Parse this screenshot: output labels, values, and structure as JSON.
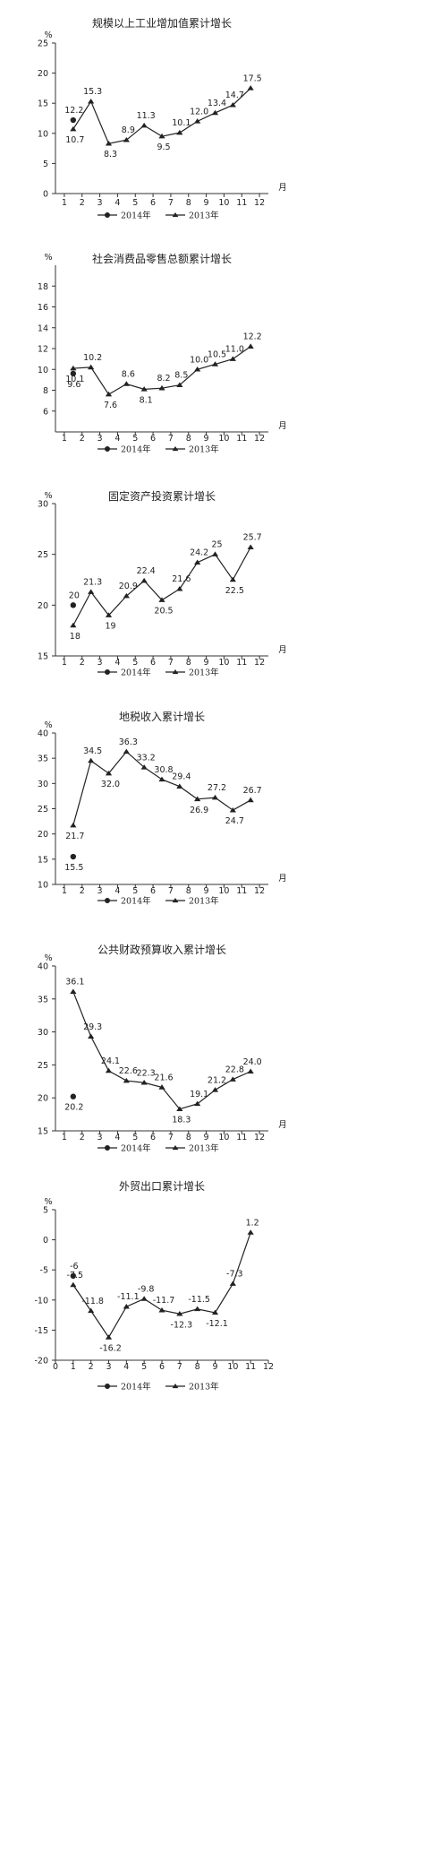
{
  "colors": {
    "line": "#222222",
    "axis": "#333333"
  },
  "chart_data": [
    {
      "type": "line",
      "title": "规模以上工业增加值累计增长",
      "ylabel": "%",
      "xlabel": "月",
      "ylim": [
        0,
        25
      ],
      "yticks": [
        0,
        5,
        10,
        15,
        20,
        25
      ],
      "xticks": [
        "1",
        "2",
        "3",
        "4",
        "5",
        "6",
        "7",
        "8",
        "9",
        "10",
        "11",
        "12"
      ],
      "legend": [
        "2014年",
        "2013年"
      ],
      "series": [
        {
          "name": "2014年",
          "marker": "circle",
          "x": [
            1.5
          ],
          "values": [
            12.2
          ],
          "labels": [
            "12.2"
          ]
        },
        {
          "name": "2013年",
          "marker": "triangle",
          "x": [
            1.5,
            2.5,
            3.5,
            4.5,
            5.5,
            6.5,
            7.5,
            8.5,
            9.5,
            10.5,
            11.5
          ],
          "values": [
            10.7,
            15.3,
            8.3,
            8.9,
            11.3,
            9.5,
            10.1,
            12.0,
            13.4,
            14.7,
            17.5
          ],
          "labels": [
            "10.7",
            "15.3",
            "8.3",
            "8.9",
            "11.3",
            "9.5",
            "10.1",
            "12.0",
            "13.4",
            "14.7",
            "17.5"
          ]
        }
      ]
    },
    {
      "type": "line",
      "title": "社会消费品零售总额累计增长",
      "ylabel": "%",
      "xlabel": "月",
      "ylim": [
        4,
        20
      ],
      "yticks": [
        6,
        8,
        10,
        12,
        14,
        16,
        18
      ],
      "xticks": [
        "1",
        "2",
        "3",
        "4",
        "5",
        "6",
        "7",
        "8",
        "9",
        "10",
        "11",
        "12"
      ],
      "legend": [
        "2014年",
        "2013年"
      ],
      "series": [
        {
          "name": "2014年",
          "marker": "circle",
          "x": [
            1.5
          ],
          "values": [
            9.6
          ],
          "labels": [
            "9.6"
          ]
        },
        {
          "name": "2013年",
          "marker": "triangle",
          "x": [
            1.5,
            2.5,
            3.5,
            4.5,
            5.5,
            6.5,
            7.5,
            8.5,
            9.5,
            10.5,
            11.5
          ],
          "values": [
            10.1,
            10.2,
            7.6,
            8.6,
            8.1,
            8.2,
            8.5,
            10.0,
            10.5,
            11.0,
            12.2
          ],
          "labels": [
            "10.1",
            "10.2",
            "7.6",
            "8.6",
            "8.1",
            "8.2",
            "8.5",
            "10.0",
            "10.5",
            "11.0",
            "12.2"
          ]
        }
      ]
    },
    {
      "type": "line",
      "title": "固定资产投资累计增长",
      "ylabel": "%",
      "xlabel": "月",
      "ylim": [
        15,
        30
      ],
      "yticks": [
        15,
        20,
        25,
        30
      ],
      "xticks": [
        "1",
        "2",
        "3",
        "4",
        "5",
        "6",
        "7",
        "8",
        "9",
        "10",
        "11",
        "12"
      ],
      "legend": [
        "2014年",
        "2013年"
      ],
      "series": [
        {
          "name": "2014年",
          "marker": "circle",
          "x": [
            1.5
          ],
          "values": [
            20
          ],
          "labels": [
            "20"
          ]
        },
        {
          "name": "2013年",
          "marker": "triangle",
          "x": [
            1.5,
            2.5,
            3.5,
            4.5,
            5.5,
            6.5,
            7.5,
            8.5,
            9.5,
            10.5,
            11.5
          ],
          "values": [
            18,
            21.3,
            19,
            20.9,
            22.4,
            20.5,
            21.6,
            24.2,
            25,
            22.5,
            25.7
          ],
          "labels": [
            "18",
            "21.3",
            "19",
            "20.9",
            "22.4",
            "20.5",
            "21.6",
            "24.2",
            "25",
            "22.5",
            "25.7"
          ]
        }
      ]
    },
    {
      "type": "line",
      "title": "地税收入累计增长",
      "ylabel": "%",
      "xlabel": "月",
      "ylim": [
        10,
        40
      ],
      "yticks": [
        10,
        15,
        20,
        25,
        30,
        35,
        40
      ],
      "xticks": [
        "1",
        "2",
        "3",
        "4",
        "5",
        "6",
        "7",
        "8",
        "9",
        "10",
        "11",
        "12"
      ],
      "legend": [
        "2014年",
        "2013年"
      ],
      "series": [
        {
          "name": "2014年",
          "marker": "circle",
          "x": [
            1.5
          ],
          "values": [
            15.5
          ],
          "labels": [
            "15.5"
          ]
        },
        {
          "name": "2013年",
          "marker": "triangle",
          "x": [
            1.5,
            2.5,
            3.5,
            4.5,
            5.5,
            6.5,
            7.5,
            8.5,
            9.5,
            10.5,
            11.5
          ],
          "values": [
            21.7,
            34.5,
            32.0,
            36.3,
            33.2,
            30.8,
            29.4,
            26.9,
            27.2,
            24.7,
            26.7
          ],
          "labels": [
            "21.7",
            "34.5",
            "32.0",
            "36.3",
            "33.2",
            "30.8",
            "29.4",
            "26.9",
            "27.2",
            "24.7",
            "26.7"
          ]
        }
      ]
    },
    {
      "type": "line",
      "title": "公共财政预算收入累计增长",
      "ylabel": "%",
      "xlabel": "月",
      "ylim": [
        15,
        40
      ],
      "yticks": [
        15,
        20,
        25,
        30,
        35,
        40
      ],
      "xticks": [
        "1",
        "2",
        "3",
        "4",
        "5",
        "6",
        "7",
        "8",
        "9",
        "10",
        "11",
        "12"
      ],
      "legend": [
        "2014年",
        "2013年"
      ],
      "series": [
        {
          "name": "2014年",
          "marker": "circle",
          "x": [
            1.5
          ],
          "values": [
            20.2
          ],
          "labels": [
            "20.2"
          ]
        },
        {
          "name": "2013年",
          "marker": "triangle",
          "x": [
            1.5,
            2.5,
            3.5,
            4.5,
            5.5,
            6.5,
            7.5,
            8.5,
            9.5,
            10.5,
            11.5
          ],
          "values": [
            36.1,
            29.3,
            24.1,
            22.6,
            22.3,
            21.6,
            18.3,
            19.1,
            21.2,
            22.8,
            24.0
          ],
          "labels": [
            "36.1",
            "29.3",
            "24.1",
            "22.6",
            "22.3",
            "21.6",
            "18.3",
            "19.1",
            "21.2",
            "22.8",
            "24.0"
          ]
        }
      ]
    },
    {
      "type": "line",
      "title": "外贸出口累计增长",
      "ylabel": "%",
      "xlabel": "",
      "ylim": [
        -20,
        5
      ],
      "yticks": [
        -20,
        -15,
        -10,
        -5,
        0,
        5
      ],
      "xticks": [
        "0",
        "1",
        "2",
        "3",
        "4",
        "5",
        "6",
        "7",
        "8",
        "9",
        "10",
        "11",
        "12"
      ],
      "legend": [
        "2014年",
        "2013年"
      ],
      "series": [
        {
          "name": "2014年",
          "marker": "circle",
          "x": [
            1
          ],
          "values": [
            -6
          ],
          "labels": [
            "-6"
          ]
        },
        {
          "name": "2013年",
          "marker": "triangle",
          "x": [
            1,
            2,
            3,
            4,
            5,
            6,
            7,
            8,
            9,
            10,
            11
          ],
          "values": [
            -7.5,
            -11.8,
            -16.2,
            -11.1,
            -9.8,
            -11.7,
            -12.3,
            -11.5,
            -12.1,
            -7.3,
            1.2
          ],
          "labels": [
            "-7.5",
            "-11.8",
            "-16.2",
            "-11.1",
            "-9.8",
            "-11.7",
            "-12.3",
            "-11.5",
            "-12.1",
            "-7.3",
            "1.2"
          ]
        }
      ]
    }
  ]
}
